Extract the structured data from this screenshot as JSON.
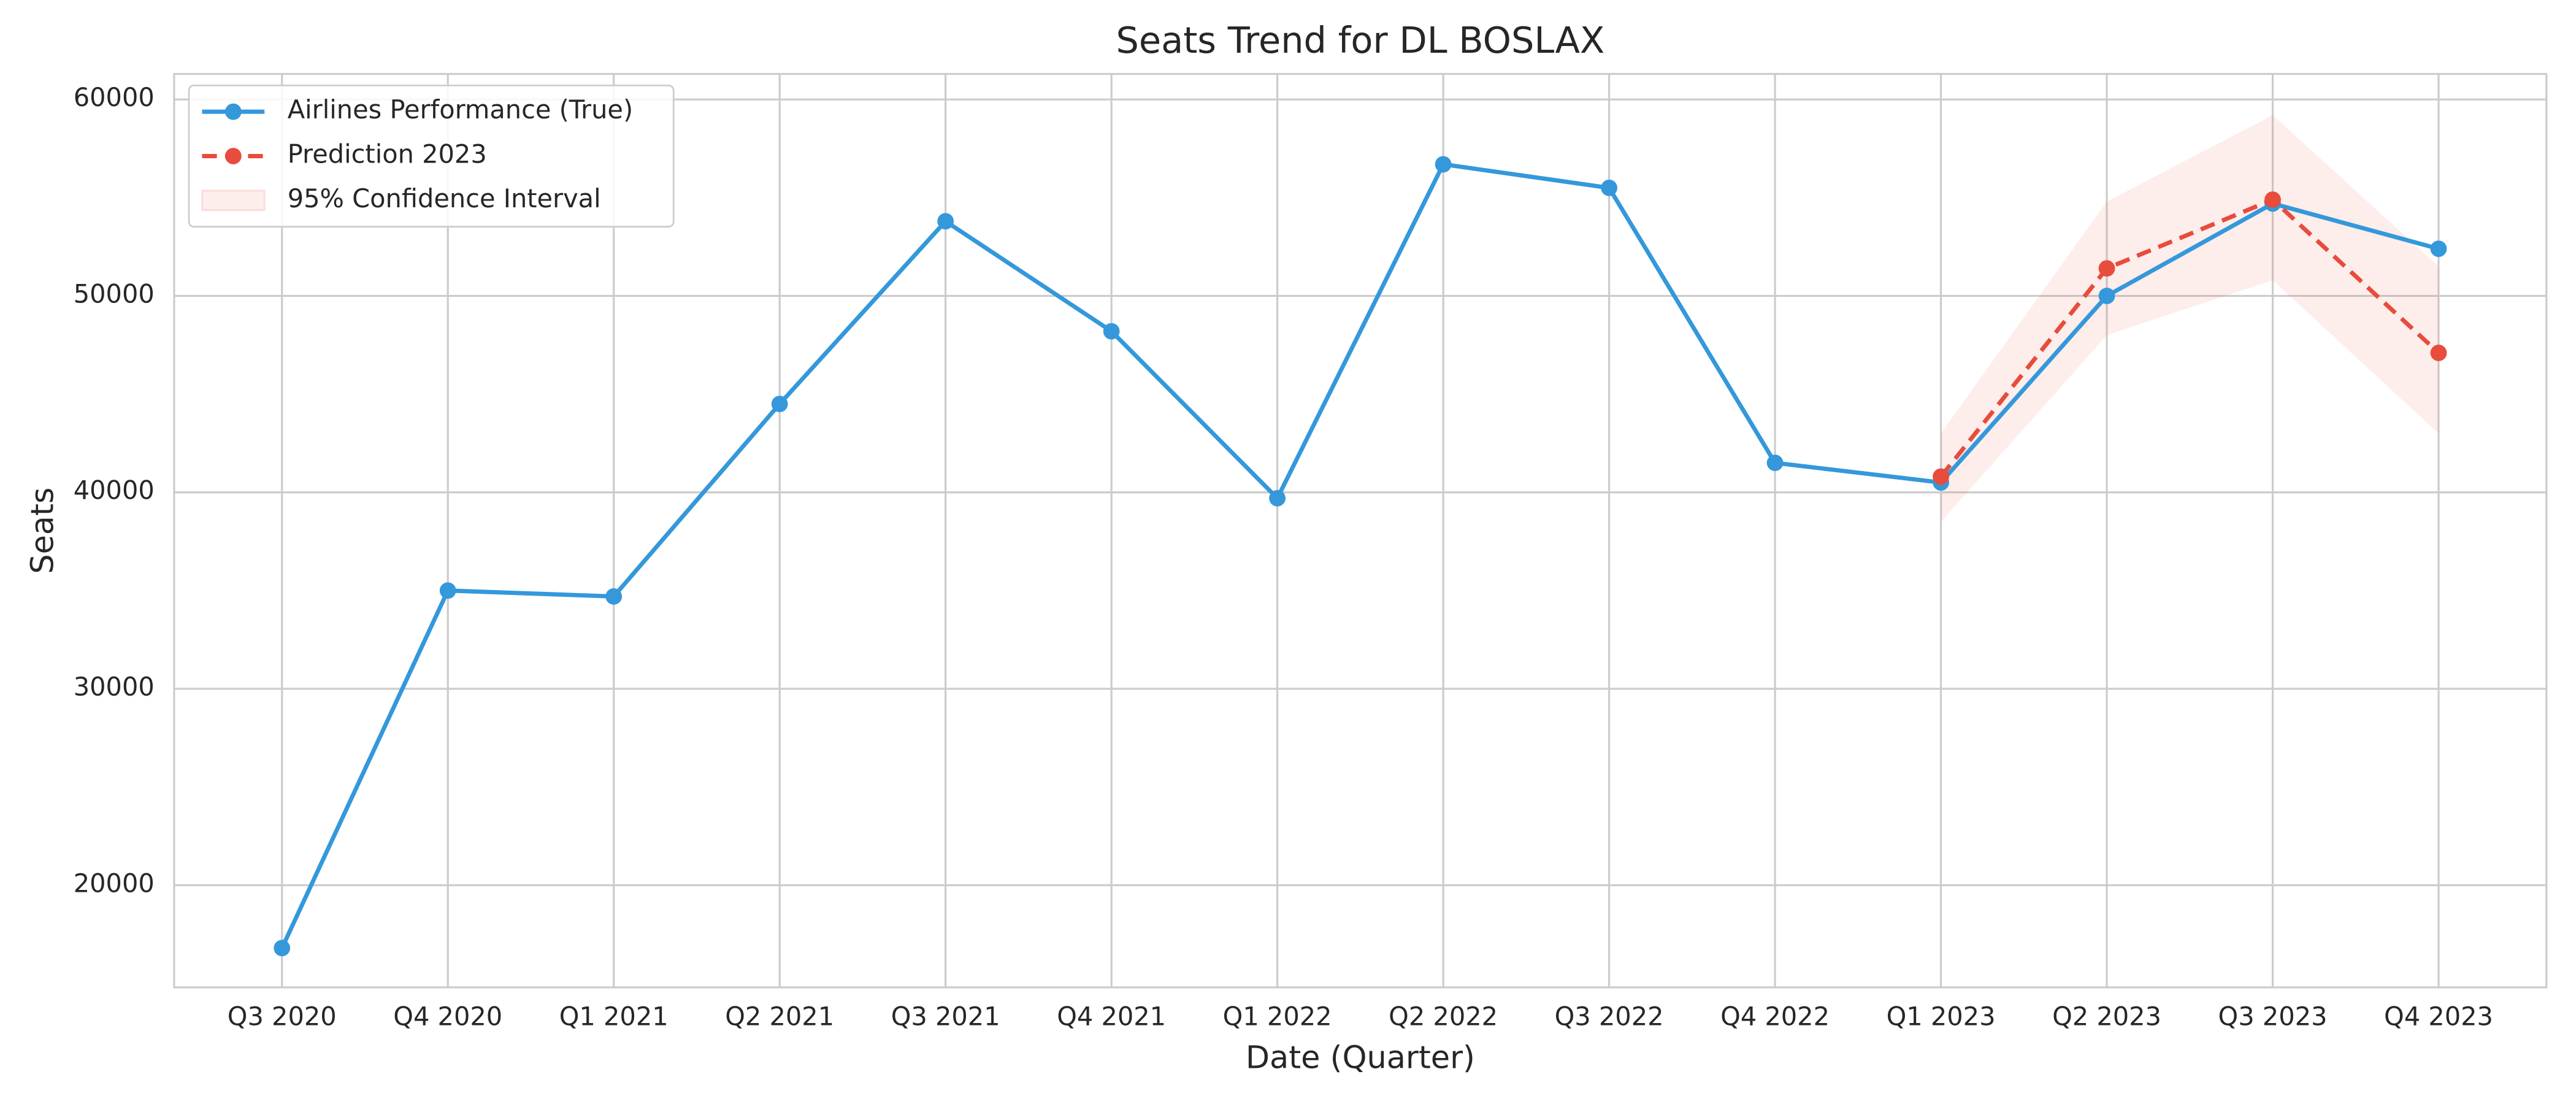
{
  "chart_data": {
    "type": "line",
    "title": "Seats Trend for DL BOSLAX",
    "xlabel": "Date (Quarter)",
    "ylabel": "Seats",
    "categories": [
      "Q3 2020",
      "Q4 2020",
      "Q1 2021",
      "Q2 2021",
      "Q3 2021",
      "Q4 2021",
      "Q1 2022",
      "Q2 2022",
      "Q3 2022",
      "Q4 2022",
      "Q1 2023",
      "Q2 2023",
      "Q3 2023",
      "Q4 2023"
    ],
    "series": [
      {
        "name": "Airlines Performance (True)",
        "color": "#3498db",
        "dashed": false,
        "values": [
          16800,
          35000,
          34700,
          44500,
          53800,
          48200,
          39700,
          56700,
          55500,
          41500,
          40500,
          50000,
          54700,
          52400
        ]
      },
      {
        "name": "Prediction 2023",
        "color": "#e74c3c",
        "dashed": true,
        "values": [
          null,
          null,
          null,
          null,
          null,
          null,
          null,
          null,
          null,
          null,
          40800,
          51400,
          54900,
          47100
        ]
      }
    ],
    "confidence_interval": {
      "name": "95% Confidence Interval",
      "color": "#e74c3c",
      "lower": [
        null,
        null,
        null,
        null,
        null,
        null,
        null,
        null,
        null,
        null,
        38500,
        48000,
        50800,
        43000
      ],
      "upper": [
        null,
        null,
        null,
        null,
        null,
        null,
        null,
        null,
        null,
        null,
        43000,
        54800,
        59200,
        51500
      ]
    },
    "ylim": [
      14800,
      61300
    ],
    "yticks": [
      20000,
      30000,
      40000,
      50000,
      60000
    ],
    "grid": true,
    "legend": "upper left"
  }
}
